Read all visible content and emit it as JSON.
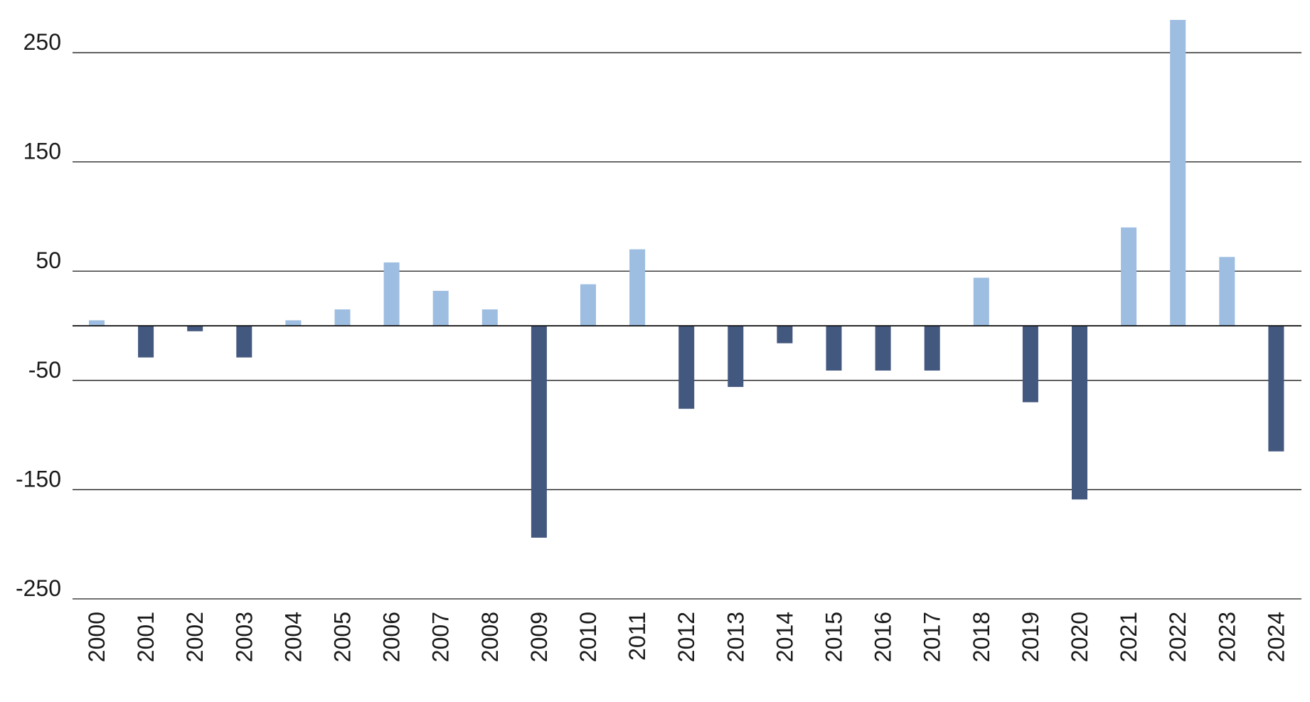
{
  "chart_data": {
    "type": "bar",
    "title": "",
    "xlabel": "",
    "ylabel": "",
    "ylim": [
      -250,
      280
    ],
    "yticks": [
      250,
      150,
      50,
      -50,
      -150,
      -250
    ],
    "ytick_labels": [
      "250",
      "150",
      "50",
      "-50",
      "-150",
      "-250"
    ],
    "grid": true,
    "legend": "none",
    "colors": {
      "positive": "#9dbde1",
      "negative": "#43587f",
      "gridline": "#1a1a1a",
      "text": "#1a1a1a"
    },
    "categories": [
      "2000",
      "2001",
      "2002",
      "2003",
      "2004",
      "2005",
      "2006",
      "2007",
      "2008",
      "2009",
      "2010",
      "2011",
      "2012",
      "2013",
      "2014",
      "2015",
      "2016",
      "2017",
      "2018",
      "2019",
      "2020",
      "2021",
      "2022",
      "2023",
      "2024"
    ],
    "values": [
      5,
      -29,
      -5,
      -29,
      5,
      15,
      58,
      32,
      15,
      -194,
      38,
      70,
      -76,
      -56,
      -16,
      -41,
      -41,
      -41,
      44,
      -70,
      -159,
      90,
      280,
      63,
      -115
    ]
  }
}
